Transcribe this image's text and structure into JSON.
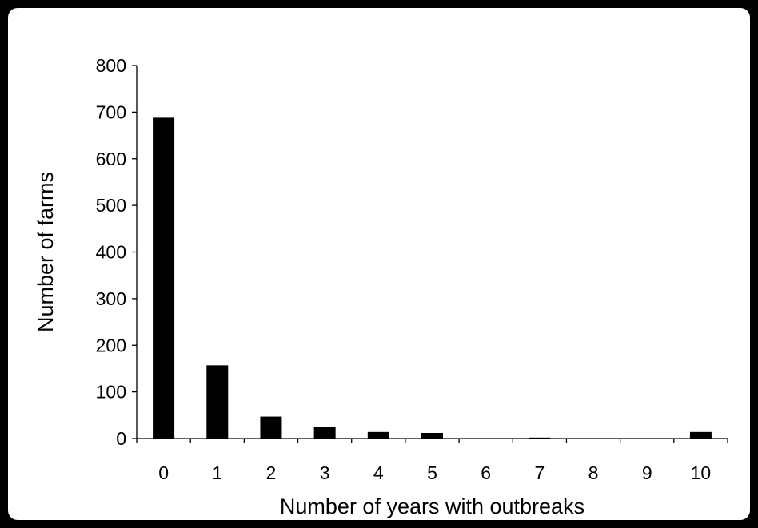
{
  "chart_data": {
    "type": "bar",
    "title": "",
    "xlabel": "Number of years with outbreaks",
    "ylabel": "Number of farms",
    "categories": [
      "0",
      "1",
      "2",
      "3",
      "4",
      "5",
      "6",
      "7",
      "8",
      "9",
      "10"
    ],
    "values": [
      688,
      157,
      47,
      25,
      14,
      12,
      0,
      2,
      0,
      0,
      14
    ],
    "ylim": [
      0,
      800
    ],
    "yticks": [
      "0",
      "100",
      "200",
      "300",
      "400",
      "500",
      "600",
      "700",
      "800"
    ],
    "bar_color": "#000000",
    "grid": false,
    "legend": "none"
  }
}
